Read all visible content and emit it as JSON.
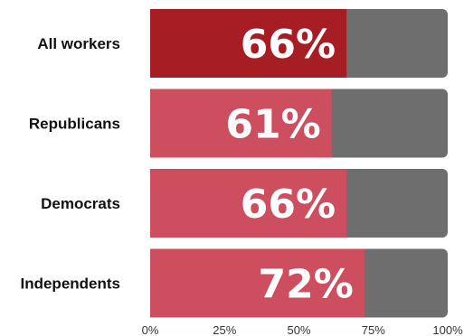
{
  "chart_data": {
    "type": "bar",
    "orientation": "horizontal",
    "stacked_remainder": true,
    "categories": [
      "All workers",
      "Republicans",
      "Democrats",
      "Independents"
    ],
    "values": [
      66,
      61,
      66,
      72
    ],
    "value_labels": [
      "66%",
      "61%",
      "66%",
      "72%"
    ],
    "xlim": [
      0,
      100
    ],
    "x_ticks": [
      "0%",
      "25%",
      "50%",
      "75%",
      "100%"
    ],
    "grid": false,
    "legend": "none",
    "colors": {
      "highlight": "#a61d24",
      "bar": "#cd4f5f",
      "remainder": "#6e6e6e"
    },
    "highlight_index": 0
  }
}
